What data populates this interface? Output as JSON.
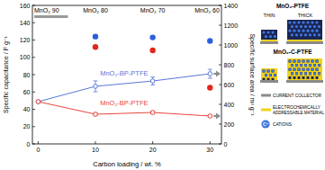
{
  "chart_data": {
    "type": "line",
    "xlabel": "Carbon loading / wt. %",
    "ylabel": "Specific capacitance / F g⁻¹",
    "y2label": "Specific surface area / m² g⁻¹",
    "annotations": [
      {
        "text": "MnO₂ 90",
        "x": 0
      },
      {
        "text": "MnO₂ 80",
        "x": 10
      },
      {
        "text": "MnO₂ 70",
        "x": 20
      },
      {
        "text": "MnO₂ 60",
        "x": 30
      }
    ],
    "x": [
      0,
      10,
      20,
      30
    ],
    "xlim": [
      -1,
      32
    ],
    "xticks": [
      0,
      10,
      20,
      30
    ],
    "ylim": [
      0,
      160
    ],
    "yticks": [
      0,
      20,
      40,
      60,
      80,
      100,
      120,
      140,
      160
    ],
    "y2lim": [
      0,
      1400
    ],
    "y2ticks": [
      0,
      200,
      400,
      600,
      800,
      1000,
      1200,
      1400
    ],
    "series": [
      {
        "type": "scatter",
        "color": "#2a5fdc",
        "marker": "circle",
        "values": [
          null,
          124,
          123,
          119
        ]
      },
      {
        "type": "scatter",
        "color": "#e3261b",
        "marker": "circle",
        "values": [
          null,
          112,
          108,
          65
        ]
      },
      {
        "name": "MnO₂-BP-PTFE",
        "type": "line",
        "axis": "y2",
        "color": "#5a76d8",
        "marker": "circle",
        "values": [
          427,
          582,
          636,
          709
        ],
        "errors": [
          null,
          55,
          40,
          45
        ]
      },
      {
        "name": "MnO₂-BP-PTFE",
        "type": "line",
        "axis": "y2",
        "color": "#e8473c",
        "marker": "circle",
        "values": [
          427,
          300,
          318,
          282
        ],
        "errors": [
          null,
          15,
          15,
          12
        ]
      }
    ]
  },
  "schematic": {
    "panels": [
      {
        "title": "MnO₂-PTFE",
        "thin": "THIN",
        "thick": "THICK"
      },
      {
        "title": "MnO₂-C-PTFE"
      }
    ],
    "legend": [
      {
        "lines": [
          "CURRENT COLLECTOR"
        ]
      },
      {
        "lines": [
          "ELECTROCHEMICALLY",
          "ADDRESSABLE MATERIAL"
        ]
      },
      {
        "lines": [
          "CATIONS"
        ],
        "symbol": "C⁺"
      }
    ]
  }
}
